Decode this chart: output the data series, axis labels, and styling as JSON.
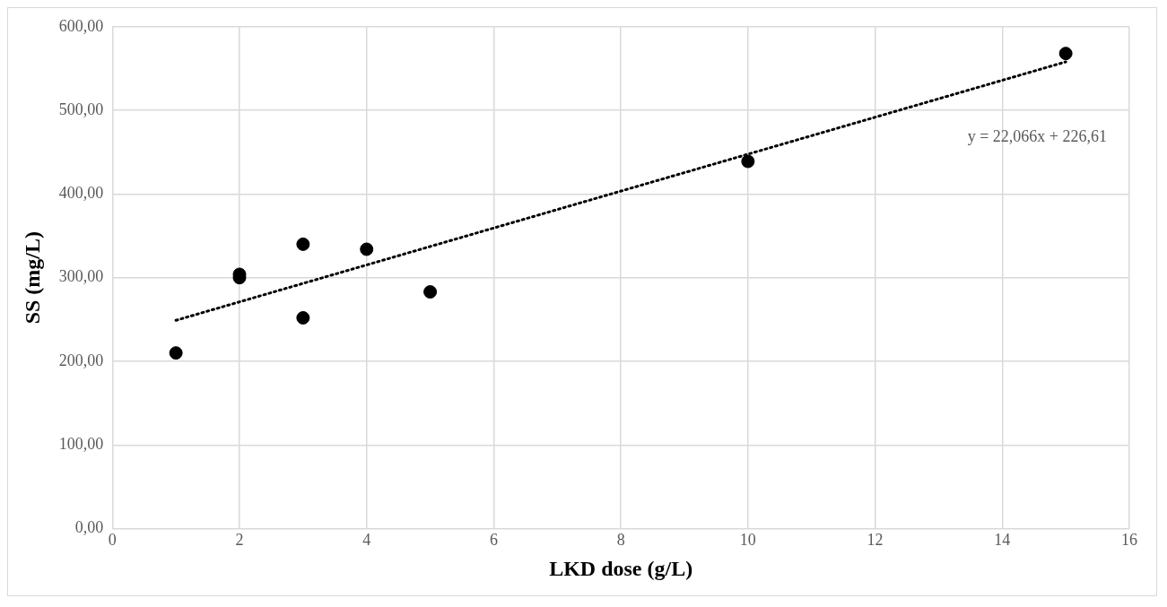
{
  "chart_data": {
    "type": "scatter",
    "xlabel": "LKD dose (g/L)",
    "ylabel": "SS (mg/L)",
    "series": [
      {
        "type": "scatter",
        "color": "#000000",
        "marker": "circle",
        "x": [
          1,
          2,
          2,
          3,
          3,
          4,
          5,
          10,
          15
        ],
        "values": [
          210,
          304,
          300,
          340,
          252,
          334,
          283,
          439,
          568
        ]
      },
      {
        "type": "line",
        "color": "#000000",
        "line_style": "dotted",
        "marker": "none",
        "x": [
          1,
          15
        ],
        "values": [
          249,
          558
        ]
      }
    ],
    "xlim": [
      0,
      16
    ],
    "xticks": [
      0,
      2,
      4,
      6,
      8,
      10,
      12,
      14,
      16
    ],
    "ylim": [
      0,
      600
    ],
    "yticks": [
      {
        "value": 0,
        "label": "0,00"
      },
      {
        "value": 100,
        "label": "100,00"
      },
      {
        "value": 200,
        "label": "200,00"
      },
      {
        "value": 300,
        "label": "300,00"
      },
      {
        "value": 400,
        "label": "400,00"
      },
      {
        "value": 500,
        "label": "500,00"
      },
      {
        "value": 600,
        "label": "600,00"
      }
    ],
    "grid": true,
    "legend": false,
    "annotations": [
      "y = 22,066x + 226,61"
    ]
  }
}
